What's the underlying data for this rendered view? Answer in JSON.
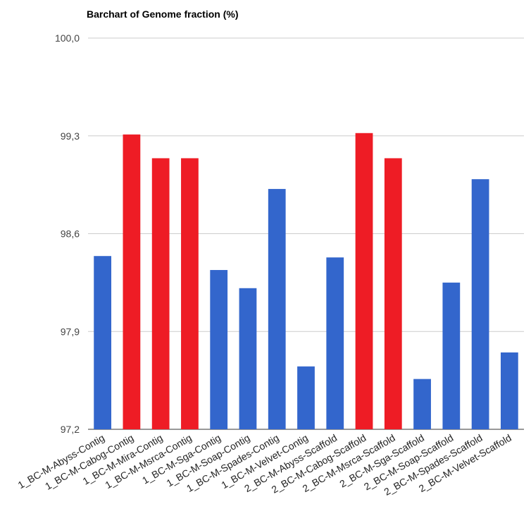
{
  "chart_data": {
    "type": "bar",
    "title": "Barchart of Genome fraction (%)",
    "xlabel": "",
    "ylabel": "",
    "ylim": [
      97.2,
      100.0
    ],
    "y_ticks": [
      "97,2",
      "97,9",
      "98,6",
      "99,3",
      "100,0"
    ],
    "y_tick_values": [
      97.2,
      97.9,
      98.6,
      99.3,
      100.0
    ],
    "grid": true,
    "legend": "none",
    "categories": [
      "1_BC-M-Abyss-Contig",
      "1_BC-M-Cabog-Contig",
      "1_BC-M-Mira-Contig",
      "1_BC-M-Msrca-Contig",
      "1_BC-M-Sga-Contig",
      "1_BC-M-Soap-Contig",
      "1_BC-M-Spades-Contig",
      "1_BC-M-Velvet-Contig",
      "2_BC-M-Abyss-Scaffold",
      "2_BC-M-Cabog-Scaffold",
      "2_BC-M-Msrca-Scaffold",
      "2_BC-M-Sga-Scaffold",
      "2_BC-M-Soap-Scaffold",
      "2_BC-M-Spades-Scaffold",
      "2_BC-M-Velvet-Scaffold"
    ],
    "values": [
      98.44,
      99.31,
      99.14,
      99.14,
      98.34,
      98.21,
      98.92,
      97.65,
      98.43,
      99.32,
      99.14,
      97.56,
      98.25,
      98.99,
      97.75
    ],
    "colors": [
      "#3366cc",
      "#ee1c25",
      "#ee1c25",
      "#ee1c25",
      "#3366cc",
      "#3366cc",
      "#3366cc",
      "#3366cc",
      "#3366cc",
      "#ee1c25",
      "#ee1c25",
      "#3366cc",
      "#3366cc",
      "#3366cc",
      "#3366cc"
    ]
  }
}
